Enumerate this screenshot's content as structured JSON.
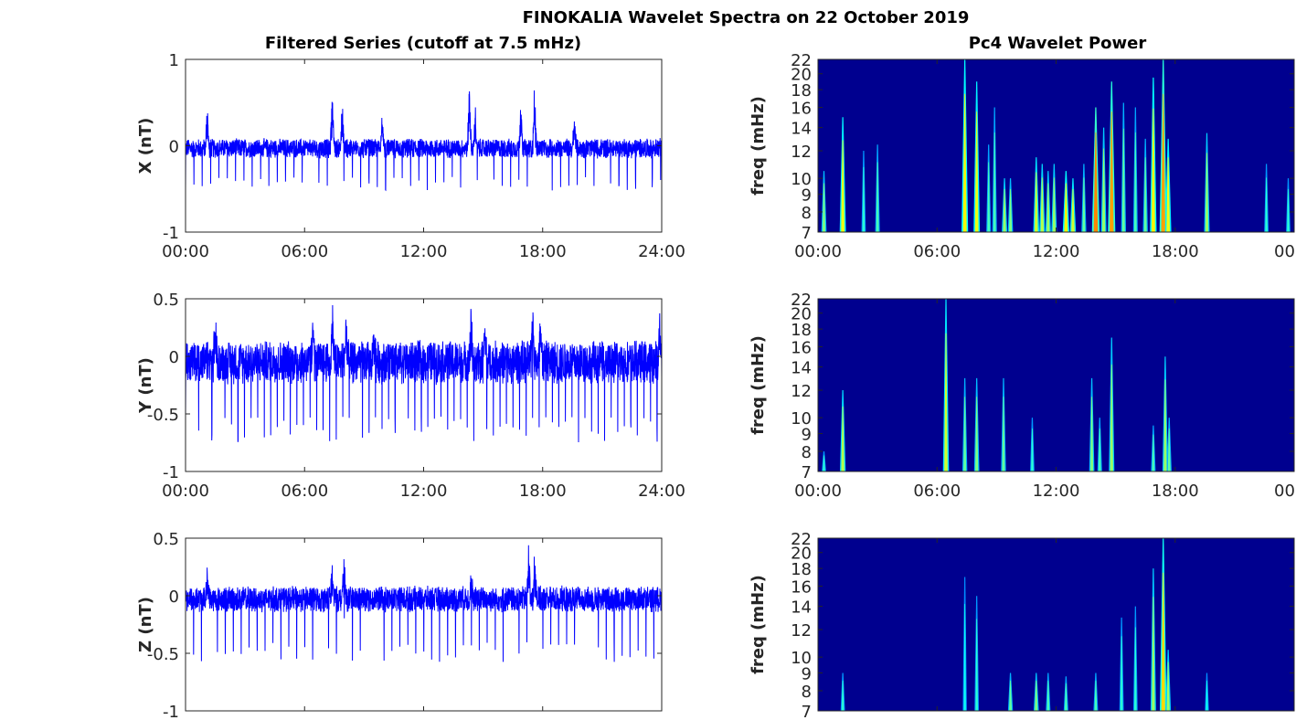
{
  "title": "FINOKALIA Wavelet Spectra on 22 October 2019",
  "colors": {
    "series": "#0000ff",
    "background": "#00008f",
    "axis": "#262626"
  },
  "chart_data": [
    {
      "type": "line",
      "title": "Filtered Series (cutoff at 7.5 mHz)",
      "ylabel": "X (nT)",
      "xlim": [
        0,
        24
      ],
      "ylim": [
        -1,
        1
      ],
      "xticks": [
        "00:00",
        "06:00",
        "12:00",
        "18:00",
        "24:00"
      ],
      "yticks": [
        "-1",
        "0",
        "1"
      ],
      "ytick_values": [
        -1,
        0,
        1
      ],
      "baseline": -0.03,
      "noise": 0.12,
      "dip_period_h": 0.42,
      "dip_depth": -0.45,
      "peaks": [
        [
          1.1,
          0.4
        ],
        [
          7.4,
          0.6
        ],
        [
          7.9,
          0.45
        ],
        [
          9.9,
          0.3
        ],
        [
          14.3,
          0.6
        ],
        [
          14.6,
          0.4
        ],
        [
          16.9,
          0.4
        ],
        [
          17.6,
          0.75
        ],
        [
          19.6,
          0.3
        ]
      ]
    },
    {
      "type": "line",
      "ylabel": "Y (nT)",
      "xlim": [
        0,
        24
      ],
      "ylim": [
        -1,
        0.5
      ],
      "xticks": [
        "00:00",
        "06:00",
        "12:00",
        "18:00",
        "24:00"
      ],
      "yticks": [
        "-1",
        "-0.5",
        "0",
        "0.5"
      ],
      "ytick_values": [
        -1,
        -0.5,
        0,
        0.5
      ],
      "baseline": -0.05,
      "noise": 0.2,
      "dip_period_h": 0.33,
      "dip_depth": -0.65,
      "peaks": [
        [
          1.5,
          0.25
        ],
        [
          6.4,
          0.35
        ],
        [
          7.4,
          0.33
        ],
        [
          8.1,
          0.28
        ],
        [
          9.5,
          0.25
        ],
        [
          14.4,
          0.3
        ],
        [
          15.1,
          0.35
        ],
        [
          17.5,
          0.4
        ],
        [
          17.9,
          0.3
        ],
        [
          23.9,
          0.25
        ]
      ]
    },
    {
      "type": "line",
      "ylabel": "Z (nT)",
      "xlim": [
        0,
        24
      ],
      "ylim": [
        -1,
        0.5
      ],
      "xticks": [],
      "yticks": [
        "-1",
        "-0.5",
        "0",
        "0.5"
      ],
      "ytick_values": [
        -1,
        -0.5,
        0,
        0.5
      ],
      "baseline": -0.03,
      "noise": 0.12,
      "dip_period_h": 0.4,
      "dip_depth": -0.5,
      "peaks": [
        [
          1.1,
          0.22
        ],
        [
          7.4,
          0.23
        ],
        [
          8.0,
          0.3
        ],
        [
          14.4,
          0.2
        ],
        [
          17.3,
          0.4
        ],
        [
          17.6,
          0.4
        ]
      ]
    },
    {
      "type": "heatmap",
      "title": "Pc4 Wavelet Power",
      "ylabel": "freq (mHz)",
      "yscale": "log",
      "xlim": [
        0,
        24
      ],
      "ylim": [
        7,
        22
      ],
      "xticks": [
        "00:00",
        "06:00",
        "12:00",
        "18:00",
        "00"
      ],
      "yticks": [
        "7",
        "8",
        "9",
        "10",
        "12",
        "14",
        "16",
        "18",
        "20",
        "22"
      ],
      "ytick_values": [
        7,
        8,
        9,
        10,
        12,
        14,
        16,
        18,
        20,
        22
      ],
      "bursts": [
        [
          0.3,
          10.5,
          0.45
        ],
        [
          1.25,
          15,
          0.65
        ],
        [
          2.3,
          12,
          0.3
        ],
        [
          3.0,
          12.5,
          0.35
        ],
        [
          7.4,
          22,
          0.7
        ],
        [
          8.0,
          19,
          0.65
        ],
        [
          8.6,
          12.5,
          0.35
        ],
        [
          8.9,
          16,
          0.35
        ],
        [
          9.4,
          10,
          0.5
        ],
        [
          9.7,
          10,
          0.45
        ],
        [
          11.0,
          11.5,
          0.6
        ],
        [
          11.3,
          11,
          0.55
        ],
        [
          11.6,
          10.5,
          0.5
        ],
        [
          11.9,
          11,
          0.5
        ],
        [
          12.5,
          10.5,
          0.7
        ],
        [
          12.85,
          10,
          0.6
        ],
        [
          13.4,
          11,
          0.4
        ],
        [
          14.0,
          16,
          0.9
        ],
        [
          14.4,
          14,
          0.5
        ],
        [
          14.8,
          19,
          0.85
        ],
        [
          15.4,
          16.5,
          0.4
        ],
        [
          16.0,
          16,
          0.35
        ],
        [
          16.5,
          13,
          0.4
        ],
        [
          16.9,
          19.5,
          0.7
        ],
        [
          17.4,
          22,
          0.85
        ],
        [
          17.65,
          13,
          0.65
        ],
        [
          19.6,
          13.5,
          0.5
        ],
        [
          22.6,
          11,
          0.3
        ],
        [
          23.7,
          10,
          0.3
        ]
      ]
    },
    {
      "type": "heatmap",
      "ylabel": "freq (mHz)",
      "yscale": "log",
      "xlim": [
        0,
        24
      ],
      "ylim": [
        7,
        22
      ],
      "xticks": [
        "00:00",
        "06:00",
        "12:00",
        "18:00",
        "00"
      ],
      "yticks": [
        "7",
        "8",
        "9",
        "10",
        "12",
        "14",
        "16",
        "18",
        "20",
        "22"
      ],
      "ytick_values": [
        7,
        8,
        9,
        10,
        12,
        14,
        16,
        18,
        20,
        22
      ],
      "bursts": [
        [
          0.3,
          8,
          0.3
        ],
        [
          1.25,
          12,
          0.55
        ],
        [
          6.45,
          22,
          0.6
        ],
        [
          7.4,
          13,
          0.4
        ],
        [
          8.0,
          13,
          0.45
        ],
        [
          9.35,
          13,
          0.4
        ],
        [
          10.8,
          10,
          0.3
        ],
        [
          13.8,
          13,
          0.45
        ],
        [
          14.2,
          10,
          0.35
        ],
        [
          14.8,
          17,
          0.5
        ],
        [
          16.9,
          9.5,
          0.35
        ],
        [
          17.5,
          15,
          0.5
        ],
        [
          17.7,
          10,
          0.4
        ]
      ]
    },
    {
      "type": "heatmap",
      "ylabel": "freq (mHz)",
      "yscale": "log",
      "xlim": [
        0,
        24
      ],
      "ylim": [
        7,
        22
      ],
      "xticks": [],
      "yticks": [
        "7",
        "8",
        "9",
        "10",
        "12",
        "14",
        "16",
        "18",
        "20",
        "22"
      ],
      "ytick_values": [
        7,
        8,
        9,
        10,
        12,
        14,
        16,
        18,
        20,
        22
      ],
      "bursts": [
        [
          1.25,
          9,
          0.3
        ],
        [
          7.4,
          17,
          0.25
        ],
        [
          8.0,
          15,
          0.3
        ],
        [
          9.7,
          9,
          0.4
        ],
        [
          11.0,
          9,
          0.45
        ],
        [
          11.6,
          9,
          0.35
        ],
        [
          12.5,
          8.8,
          0.35
        ],
        [
          14.0,
          9,
          0.35
        ],
        [
          15.3,
          13,
          0.3
        ],
        [
          16.0,
          14,
          0.3
        ],
        [
          16.9,
          18,
          0.5
        ],
        [
          17.4,
          22,
          0.75
        ],
        [
          17.65,
          10.5,
          0.5
        ],
        [
          19.6,
          9,
          0.25
        ]
      ]
    }
  ]
}
